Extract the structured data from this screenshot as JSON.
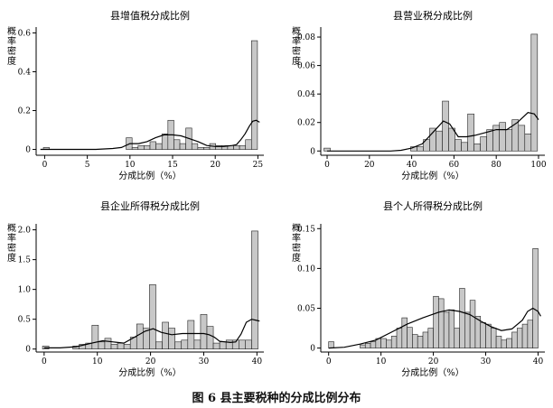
{
  "figure": {
    "caption": "图 6   县主要税种的分成比例分布"
  },
  "chart_data": [
    {
      "type": "bar",
      "title": "县增值税分成比例",
      "ylabel": "概率密度",
      "xlabel": "分成比例（%）",
      "xlim": [
        -1,
        25.7
      ],
      "ylim": [
        -0.03,
        0.63
      ],
      "xticks": [
        0,
        5,
        10,
        15,
        20,
        25
      ],
      "yticks": [
        0,
        0.2,
        0.4,
        0.6
      ],
      "ytick_labels": [
        "0",
        "0.2",
        "0.4",
        "0.6"
      ],
      "bin_width": 0.7,
      "bins": [
        {
          "x": 0.2,
          "density": 0.01
        },
        {
          "x": 9.9,
          "density": 0.06
        },
        {
          "x": 10.6,
          "density": 0.01
        },
        {
          "x": 11.3,
          "density": 0.02
        },
        {
          "x": 12.0,
          "density": 0.02
        },
        {
          "x": 12.7,
          "density": 0.04
        },
        {
          "x": 13.4,
          "density": 0.03
        },
        {
          "x": 14.1,
          "density": 0.08
        },
        {
          "x": 14.8,
          "density": 0.15
        },
        {
          "x": 15.5,
          "density": 0.05
        },
        {
          "x": 16.2,
          "density": 0.03
        },
        {
          "x": 16.9,
          "density": 0.11
        },
        {
          "x": 17.6,
          "density": 0.03
        },
        {
          "x": 18.3,
          "density": 0.01
        },
        {
          "x": 19.0,
          "density": 0.01
        },
        {
          "x": 19.7,
          "density": 0.03
        },
        {
          "x": 20.4,
          "density": 0.02
        },
        {
          "x": 21.1,
          "density": 0.02
        },
        {
          "x": 21.8,
          "density": 0.02
        },
        {
          "x": 22.5,
          "density": 0.02
        },
        {
          "x": 23.2,
          "density": 0.02
        },
        {
          "x": 23.9,
          "density": 0.05
        },
        {
          "x": 24.6,
          "density": 0.56
        }
      ],
      "kde": [
        [
          -0.5,
          0.0
        ],
        [
          0,
          0.0
        ],
        [
          2,
          0.0
        ],
        [
          4,
          0.0
        ],
        [
          6,
          0.0
        ],
        [
          8,
          0.005
        ],
        [
          9,
          0.01
        ],
        [
          10,
          0.03
        ],
        [
          11,
          0.03
        ],
        [
          12,
          0.04
        ],
        [
          13,
          0.06
        ],
        [
          14,
          0.075
        ],
        [
          15,
          0.075
        ],
        [
          16,
          0.07
        ],
        [
          17,
          0.055
        ],
        [
          18,
          0.04
        ],
        [
          19,
          0.02
        ],
        [
          20,
          0.015
        ],
        [
          21,
          0.015
        ],
        [
          22,
          0.02
        ],
        [
          22.5,
          0.025
        ],
        [
          23,
          0.05
        ],
        [
          23.5,
          0.08
        ],
        [
          24,
          0.12
        ],
        [
          24.4,
          0.145
        ],
        [
          24.8,
          0.15
        ],
        [
          25.2,
          0.14
        ]
      ]
    },
    {
      "type": "bar",
      "title": "县营业税分成比例",
      "ylabel": "概率密度",
      "xlabel": "分成比例（%）",
      "xlim": [
        -3,
        103
      ],
      "ylim": [
        -0.003,
        0.087
      ],
      "xticks": [
        0,
        20,
        40,
        60,
        80,
        100
      ],
      "yticks": [
        0,
        0.02,
        0.04,
        0.06,
        0.08
      ],
      "ytick_labels": [
        "0",
        "0.02",
        "0.04",
        "0.06",
        "0.08"
      ],
      "bin_width": 3.0,
      "bins": [
        {
          "x": 0,
          "density": 0.002
        },
        {
          "x": 41,
          "density": 0.003
        },
        {
          "x": 44,
          "density": 0.003
        },
        {
          "x": 47,
          "density": 0.008
        },
        {
          "x": 50,
          "density": 0.016
        },
        {
          "x": 53,
          "density": 0.014
        },
        {
          "x": 56,
          "density": 0.035
        },
        {
          "x": 59,
          "density": 0.016
        },
        {
          "x": 62,
          "density": 0.008
        },
        {
          "x": 65,
          "density": 0.006
        },
        {
          "x": 68,
          "density": 0.026
        },
        {
          "x": 71,
          "density": 0.005
        },
        {
          "x": 74,
          "density": 0.01
        },
        {
          "x": 77,
          "density": 0.015
        },
        {
          "x": 80,
          "density": 0.018
        },
        {
          "x": 83,
          "density": 0.02
        },
        {
          "x": 86,
          "density": 0.015
        },
        {
          "x": 89,
          "density": 0.022
        },
        {
          "x": 92,
          "density": 0.018
        },
        {
          "x": 95,
          "density": 0.012
        },
        {
          "x": 98,
          "density": 0.082
        }
      ],
      "kde": [
        [
          0,
          0.0
        ],
        [
          10,
          0.0
        ],
        [
          20,
          0.0
        ],
        [
          30,
          0.0
        ],
        [
          35,
          0.0005
        ],
        [
          40,
          0.002
        ],
        [
          45,
          0.005
        ],
        [
          50,
          0.013
        ],
        [
          55,
          0.021
        ],
        [
          58,
          0.019
        ],
        [
          62,
          0.01
        ],
        [
          66,
          0.01
        ],
        [
          70,
          0.011
        ],
        [
          75,
          0.013
        ],
        [
          80,
          0.015
        ],
        [
          85,
          0.015
        ],
        [
          90,
          0.02
        ],
        [
          95,
          0.027
        ],
        [
          98,
          0.026
        ],
        [
          100,
          0.022
        ]
      ]
    },
    {
      "type": "bar",
      "title": "县企业所得税分成比例",
      "ylabel": "概率密度",
      "xlabel": "分成比例（%）",
      "xlim": [
        -1.5,
        41.3
      ],
      "ylim": [
        -0.05,
        2.1
      ],
      "xticks": [
        0,
        10,
        20,
        30,
        40
      ],
      "yticks": [
        0,
        0.5,
        1.0,
        1.5,
        2.0
      ],
      "ytick_labels": [
        "0",
        "0.5",
        "1.0",
        "1.5",
        "2.0"
      ],
      "bin_width": 1.2,
      "bins": [
        {
          "x": 0.3,
          "density": 0.05
        },
        {
          "x": 6.0,
          "density": 0.05
        },
        {
          "x": 7.2,
          "density": 0.08
        },
        {
          "x": 8.4,
          "density": 0.1
        },
        {
          "x": 9.6,
          "density": 0.4
        },
        {
          "x": 10.8,
          "density": 0.12
        },
        {
          "x": 12.0,
          "density": 0.18
        },
        {
          "x": 13.2,
          "density": 0.08
        },
        {
          "x": 14.4,
          "density": 0.1
        },
        {
          "x": 15.6,
          "density": 0.08
        },
        {
          "x": 16.8,
          "density": 0.2
        },
        {
          "x": 18.0,
          "density": 0.42
        },
        {
          "x": 19.2,
          "density": 0.35
        },
        {
          "x": 20.4,
          "density": 1.08
        },
        {
          "x": 21.6,
          "density": 0.12
        },
        {
          "x": 22.8,
          "density": 0.45
        },
        {
          "x": 24.0,
          "density": 0.35
        },
        {
          "x": 25.2,
          "density": 0.12
        },
        {
          "x": 26.4,
          "density": 0.15
        },
        {
          "x": 27.6,
          "density": 0.48
        },
        {
          "x": 28.8,
          "density": 0.15
        },
        {
          "x": 30.0,
          "density": 0.58
        },
        {
          "x": 31.2,
          "density": 0.38
        },
        {
          "x": 32.4,
          "density": 0.1
        },
        {
          "x": 33.6,
          "density": 0.12
        },
        {
          "x": 34.8,
          "density": 0.15
        },
        {
          "x": 36.0,
          "density": 0.15
        },
        {
          "x": 37.2,
          "density": 0.15
        },
        {
          "x": 38.4,
          "density": 0.15
        },
        {
          "x": 39.6,
          "density": 1.98
        }
      ],
      "kde": [
        [
          0,
          0.02
        ],
        [
          3,
          0.02
        ],
        [
          6,
          0.04
        ],
        [
          9,
          0.1
        ],
        [
          11,
          0.14
        ],
        [
          13,
          0.12
        ],
        [
          15,
          0.1
        ],
        [
          17,
          0.2
        ],
        [
          19,
          0.3
        ],
        [
          20.5,
          0.34
        ],
        [
          22,
          0.28
        ],
        [
          24,
          0.24
        ],
        [
          26,
          0.26
        ],
        [
          28,
          0.26
        ],
        [
          30,
          0.26
        ],
        [
          31,
          0.24
        ],
        [
          32,
          0.2
        ],
        [
          33,
          0.13
        ],
        [
          35,
          0.11
        ],
        [
          36,
          0.12
        ],
        [
          37,
          0.25
        ],
        [
          38,
          0.45
        ],
        [
          39,
          0.5
        ],
        [
          40,
          0.48
        ],
        [
          40.5,
          0.47
        ]
      ]
    },
    {
      "type": "bar",
      "title": "县个人所得税分成比例",
      "ylabel": "概率密度",
      "xlabel": "分成比例（%）",
      "xlim": [
        -1.5,
        41.3
      ],
      "ylim": [
        -0.005,
        0.156
      ],
      "xticks": [
        0,
        10,
        20,
        30,
        40
      ],
      "yticks": [
        0,
        0.05,
        0.1,
        0.15
      ],
      "ytick_labels": [
        "0",
        "0.05",
        "0.10",
        "0.15"
      ],
      "bin_width": 1.0,
      "bins": [
        {
          "x": 0.5,
          "density": 0.008
        },
        {
          "x": 6.5,
          "density": 0.004
        },
        {
          "x": 7.5,
          "density": 0.006
        },
        {
          "x": 8.5,
          "density": 0.008
        },
        {
          "x": 9.5,
          "density": 0.012
        },
        {
          "x": 10.5,
          "density": 0.012
        },
        {
          "x": 11.5,
          "density": 0.01
        },
        {
          "x": 12.5,
          "density": 0.015
        },
        {
          "x": 13.5,
          "density": 0.025
        },
        {
          "x": 14.5,
          "density": 0.038
        },
        {
          "x": 15.5,
          "density": 0.026
        },
        {
          "x": 16.5,
          "density": 0.017
        },
        {
          "x": 17.5,
          "density": 0.015
        },
        {
          "x": 18.5,
          "density": 0.02
        },
        {
          "x": 19.5,
          "density": 0.025
        },
        {
          "x": 20.5,
          "density": 0.065
        },
        {
          "x": 21.5,
          "density": 0.062
        },
        {
          "x": 22.5,
          "density": 0.045
        },
        {
          "x": 23.5,
          "density": 0.048
        },
        {
          "x": 24.5,
          "density": 0.025
        },
        {
          "x": 25.5,
          "density": 0.075
        },
        {
          "x": 26.5,
          "density": 0.045
        },
        {
          "x": 27.5,
          "density": 0.06
        },
        {
          "x": 28.5,
          "density": 0.04
        },
        {
          "x": 29.5,
          "density": 0.032
        },
        {
          "x": 30.5,
          "density": 0.03
        },
        {
          "x": 31.5,
          "density": 0.025
        },
        {
          "x": 32.5,
          "density": 0.015
        },
        {
          "x": 33.5,
          "density": 0.01
        },
        {
          "x": 34.5,
          "density": 0.012
        },
        {
          "x": 35.5,
          "density": 0.02
        },
        {
          "x": 36.5,
          "density": 0.025
        },
        {
          "x": 37.5,
          "density": 0.03
        },
        {
          "x": 38.5,
          "density": 0.035
        },
        {
          "x": 39.5,
          "density": 0.125
        }
      ],
      "kde": [
        [
          0,
          0.0
        ],
        [
          3,
          0.001
        ],
        [
          6,
          0.005
        ],
        [
          9,
          0.01
        ],
        [
          12,
          0.02
        ],
        [
          15,
          0.03
        ],
        [
          18,
          0.038
        ],
        [
          21,
          0.045
        ],
        [
          23,
          0.048
        ],
        [
          25,
          0.046
        ],
        [
          27,
          0.042
        ],
        [
          29,
          0.034
        ],
        [
          31,
          0.027
        ],
        [
          33,
          0.022
        ],
        [
          35,
          0.024
        ],
        [
          37,
          0.035
        ],
        [
          38,
          0.046
        ],
        [
          39,
          0.05
        ],
        [
          40,
          0.046
        ],
        [
          40.5,
          0.04
        ]
      ]
    }
  ]
}
